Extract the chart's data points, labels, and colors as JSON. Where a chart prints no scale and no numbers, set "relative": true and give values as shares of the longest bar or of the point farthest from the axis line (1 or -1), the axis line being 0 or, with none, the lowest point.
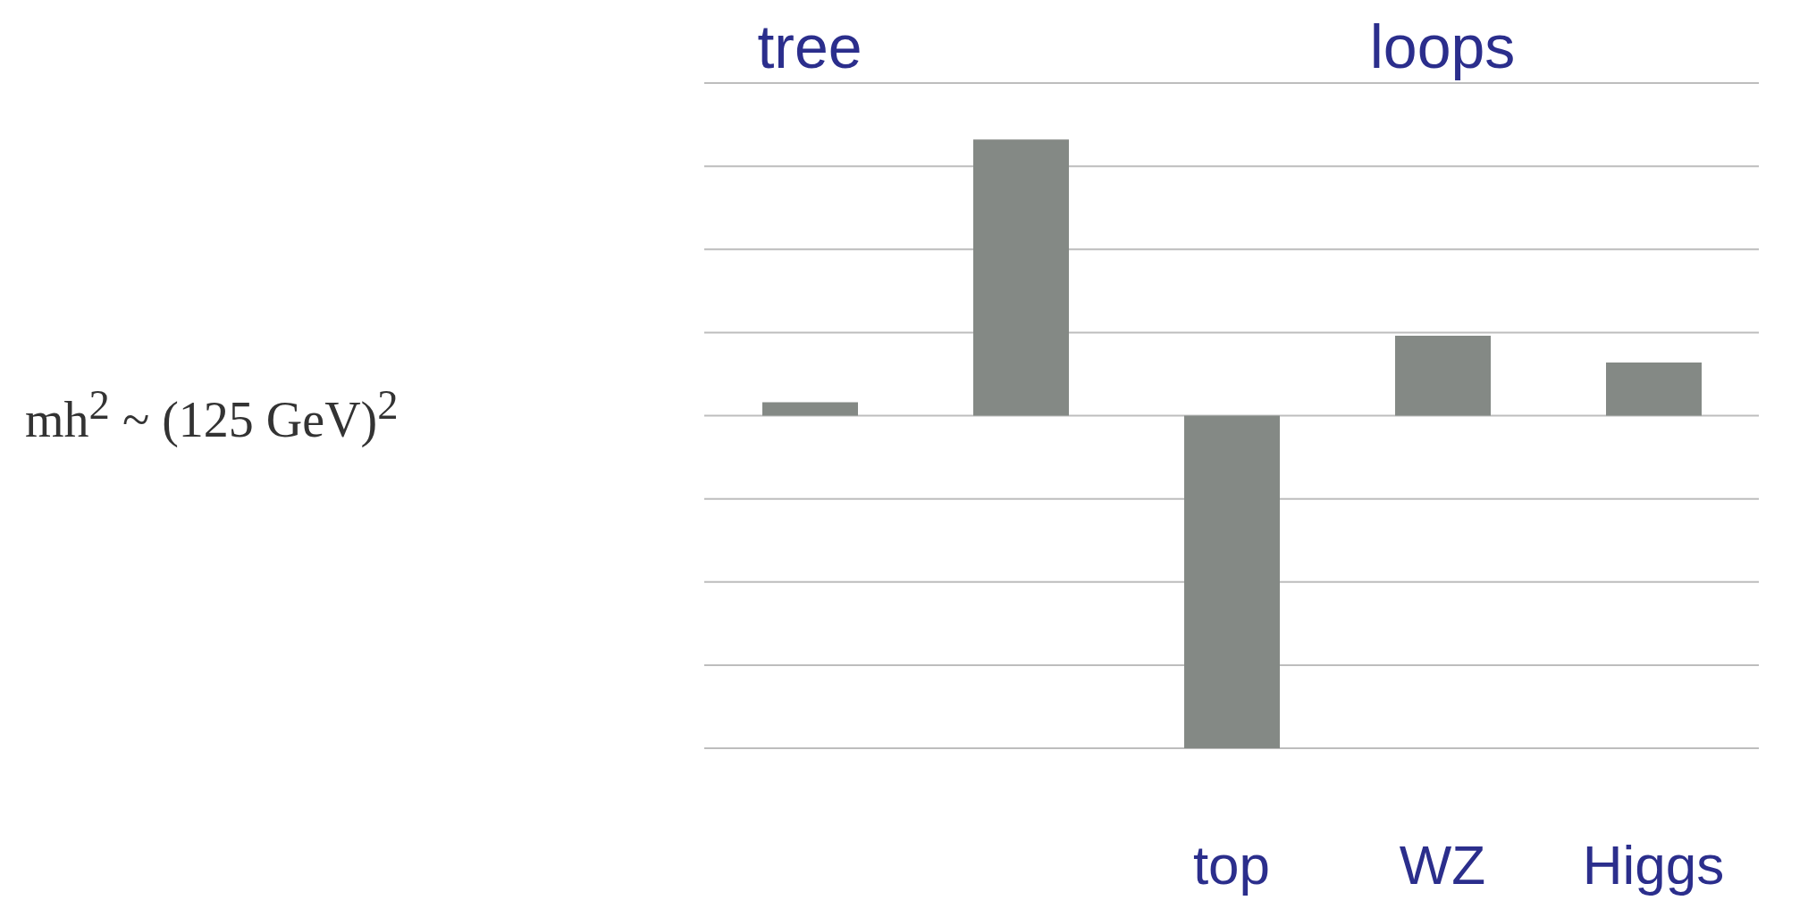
{
  "chart_data": {
    "type": "bar",
    "relative": true,
    "categories": [
      null,
      null,
      "top",
      "WZ",
      "Higgs"
    ],
    "values": [
      0.04,
      0.83,
      -1,
      0.24,
      0.16
    ],
    "color": "#848985",
    "grid": "y",
    "annotations": [
      "tree",
      "loops",
      "mh$^{2}$ ~ (125 GeV)$^{2}$"
    ]
  }
}
